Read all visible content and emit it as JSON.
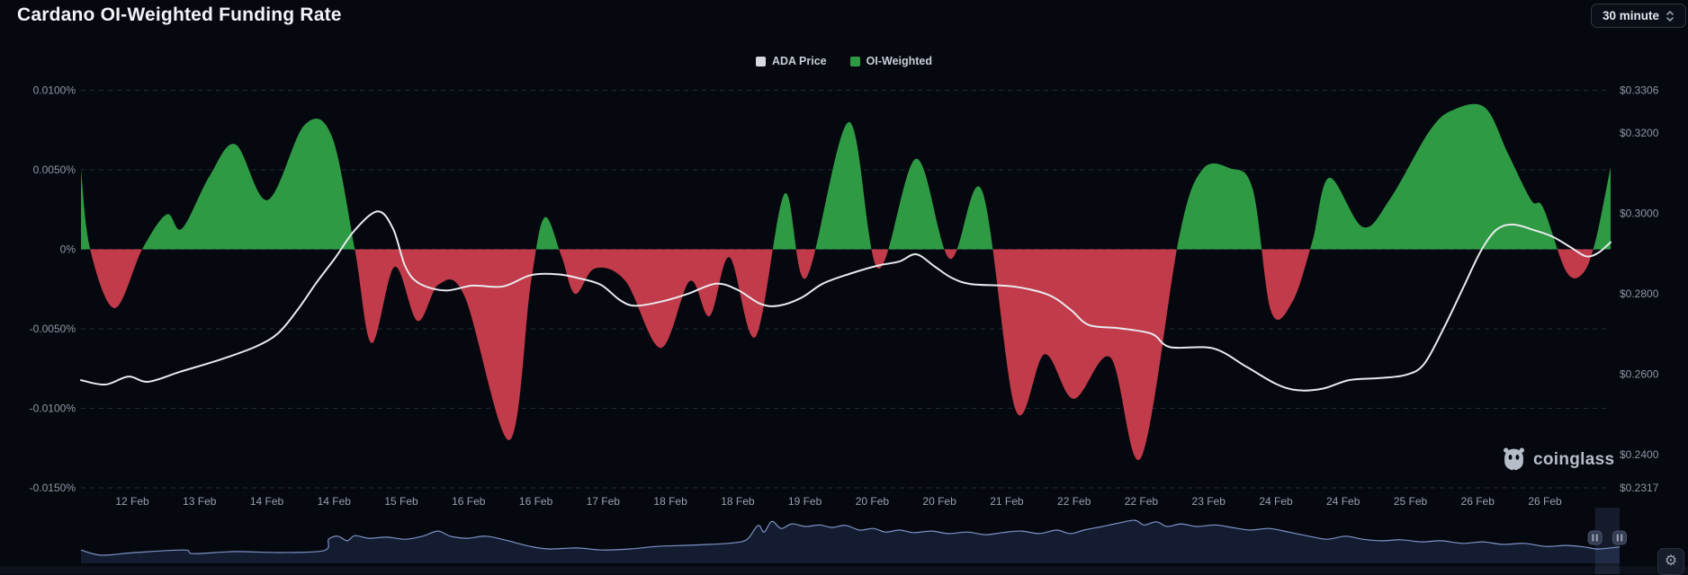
{
  "title": "Cardano OI-Weighted Funding Rate",
  "interval_selector": {
    "value": "30 minute"
  },
  "legend": [
    {
      "label": "ADA Price",
      "color": "#d7dae0"
    },
    {
      "label": "OI-Weighted",
      "color": "#2e9b44"
    }
  ],
  "watermark": "coinglass",
  "colors": {
    "background": "#05080f",
    "positive": "#2e9b44",
    "negative": "#c13b4a",
    "price_line": "#e9eaee",
    "grid": "#232a36",
    "axis_text": "#8e96a4",
    "navigator_line": "#7d92c4",
    "navigator_fill": "#131c30"
  },
  "chart_data": {
    "type": "area+line",
    "title": "Cardano OI-Weighted Funding Rate",
    "legend_position": "top-center",
    "grid": {
      "style": "dashed",
      "on": true
    },
    "x_axis": {
      "ticks": [
        "12 Feb",
        "13 Feb",
        "14 Feb",
        "14 Feb",
        "15 Feb",
        "16 Feb",
        "16 Feb",
        "17 Feb",
        "18 Feb",
        "18 Feb",
        "19 Feb",
        "20 Feb",
        "20 Feb",
        "21 Feb",
        "22 Feb",
        "22 Feb",
        "23 Feb",
        "24 Feb",
        "24 Feb",
        "25 Feb",
        "26 Feb",
        "26 Feb"
      ]
    },
    "left_axis": {
      "unit": "%",
      "labels": [
        "0.0100%",
        "0.0050%",
        "0%",
        "-0.0050%",
        "-0.0100%",
        "-0.0150%"
      ],
      "values": [
        0.01,
        0.005,
        0,
        -0.005,
        -0.01,
        -0.015
      ]
    },
    "right_axis": {
      "unit": "$",
      "labels": [
        "$0.3306",
        "$0.3200",
        "$0.3000",
        "$0.2800",
        "$0.2600",
        "$0.2400",
        "$0.2317"
      ],
      "values": [
        0.3306,
        0.32,
        0.3,
        0.28,
        0.26,
        0.24,
        0.2317
      ]
    },
    "series": [
      {
        "name": "ADA Price",
        "type": "line",
        "unit": "USD",
        "points": [
          [
            0.0,
            0.2585
          ],
          [
            0.016,
            0.2574
          ],
          [
            0.031,
            0.2594
          ],
          [
            0.044,
            0.2581
          ],
          [
            0.065,
            0.2606
          ],
          [
            0.091,
            0.2636
          ],
          [
            0.114,
            0.2668
          ],
          [
            0.129,
            0.2702
          ],
          [
            0.142,
            0.2762
          ],
          [
            0.154,
            0.2828
          ],
          [
            0.166,
            0.2888
          ],
          [
            0.179,
            0.2958
          ],
          [
            0.194,
            0.3005
          ],
          [
            0.204,
            0.2962
          ],
          [
            0.212,
            0.2868
          ],
          [
            0.221,
            0.2826
          ],
          [
            0.238,
            0.2808
          ],
          [
            0.256,
            0.282
          ],
          [
            0.276,
            0.2818
          ],
          [
            0.294,
            0.2846
          ],
          [
            0.312,
            0.2848
          ],
          [
            0.326,
            0.2838
          ],
          [
            0.34,
            0.2822
          ],
          [
            0.352,
            0.2785
          ],
          [
            0.362,
            0.277
          ],
          [
            0.379,
            0.278
          ],
          [
            0.397,
            0.28
          ],
          [
            0.415,
            0.2825
          ],
          [
            0.429,
            0.281
          ],
          [
            0.444,
            0.2775
          ],
          [
            0.456,
            0.277
          ],
          [
            0.471,
            0.279
          ],
          [
            0.485,
            0.2825
          ],
          [
            0.503,
            0.285
          ],
          [
            0.521,
            0.287
          ],
          [
            0.535,
            0.288
          ],
          [
            0.546,
            0.2898
          ],
          [
            0.558,
            0.2868
          ],
          [
            0.569,
            0.284
          ],
          [
            0.582,
            0.2824
          ],
          [
            0.609,
            0.2818
          ],
          [
            0.632,
            0.2798
          ],
          [
            0.647,
            0.276
          ],
          [
            0.659,
            0.2722
          ],
          [
            0.679,
            0.2714
          ],
          [
            0.7,
            0.27
          ],
          [
            0.712,
            0.2667
          ],
          [
            0.74,
            0.2664
          ],
          [
            0.762,
            0.2618
          ],
          [
            0.781,
            0.2576
          ],
          [
            0.795,
            0.256
          ],
          [
            0.812,
            0.2564
          ],
          [
            0.829,
            0.2585
          ],
          [
            0.848,
            0.259
          ],
          [
            0.866,
            0.2598
          ],
          [
            0.878,
            0.2625
          ],
          [
            0.891,
            0.2715
          ],
          [
            0.903,
            0.281
          ],
          [
            0.915,
            0.2905
          ],
          [
            0.925,
            0.2958
          ],
          [
            0.936,
            0.2972
          ],
          [
            0.95,
            0.2958
          ],
          [
            0.962,
            0.2942
          ],
          [
            0.974,
            0.2915
          ],
          [
            0.984,
            0.2893
          ],
          [
            0.992,
            0.2902
          ],
          [
            1.0,
            0.2928
          ]
        ]
      },
      {
        "name": "OI-Weighted",
        "type": "area",
        "unit": "percent",
        "points": [
          [
            0.0,
            0.005
          ],
          [
            0.006,
            0.0
          ],
          [
            0.022,
            -0.0037
          ],
          [
            0.04,
            0.0
          ],
          [
            0.056,
            0.0022
          ],
          [
            0.066,
            0.0013
          ],
          [
            0.084,
            0.0046
          ],
          [
            0.101,
            0.0066
          ],
          [
            0.122,
            0.0031
          ],
          [
            0.146,
            0.0078
          ],
          [
            0.164,
            0.0071
          ],
          [
            0.179,
            0.0
          ],
          [
            0.19,
            -0.0059
          ],
          [
            0.205,
            -0.0011
          ],
          [
            0.22,
            -0.0045
          ],
          [
            0.234,
            -0.0022
          ],
          [
            0.251,
            -0.003
          ],
          [
            0.28,
            -0.012
          ],
          [
            0.294,
            -0.0022
          ],
          [
            0.303,
            0.002
          ],
          [
            0.314,
            -0.0004
          ],
          [
            0.323,
            -0.0028
          ],
          [
            0.336,
            -0.0012
          ],
          [
            0.356,
            -0.002
          ],
          [
            0.379,
            -0.0062
          ],
          [
            0.398,
            -0.002
          ],
          [
            0.411,
            -0.0042
          ],
          [
            0.424,
            -0.0005
          ],
          [
            0.441,
            -0.0055
          ],
          [
            0.46,
            0.0035
          ],
          [
            0.474,
            -0.0018
          ],
          [
            0.502,
            0.008
          ],
          [
            0.521,
            -0.0012
          ],
          [
            0.546,
            0.0057
          ],
          [
            0.568,
            -0.0006
          ],
          [
            0.589,
            0.0037
          ],
          [
            0.611,
            -0.0101
          ],
          [
            0.63,
            -0.0066
          ],
          [
            0.649,
            -0.0094
          ],
          [
            0.673,
            -0.0068
          ],
          [
            0.693,
            -0.0131
          ],
          [
            0.718,
            0.0008
          ],
          [
            0.733,
            0.005
          ],
          [
            0.751,
            0.0051
          ],
          [
            0.766,
            0.0038
          ],
          [
            0.778,
            -0.0039
          ],
          [
            0.792,
            -0.0033
          ],
          [
            0.805,
            0.0005
          ],
          [
            0.816,
            0.0045
          ],
          [
            0.838,
            0.0014
          ],
          [
            0.856,
            0.0032
          ],
          [
            0.882,
            0.0075
          ],
          [
            0.898,
            0.0088
          ],
          [
            0.918,
            0.0089
          ],
          [
            0.933,
            0.006
          ],
          [
            0.948,
            0.0031
          ],
          [
            0.956,
            0.0026
          ],
          [
            0.971,
            -0.0014
          ],
          [
            0.982,
            -0.0015
          ],
          [
            0.99,
            0.0005
          ],
          [
            0.998,
            0.0042
          ],
          [
            1.0,
            0.0052
          ]
        ]
      }
    ],
    "navigator": {
      "selection": [
        0.984,
        1.0
      ],
      "points": [
        [
          0.0,
          0.26
        ],
        [
          0.013,
          0.16
        ],
        [
          0.035,
          0.21
        ],
        [
          0.067,
          0.26
        ],
        [
          0.073,
          0.19
        ],
        [
          0.1,
          0.23
        ],
        [
          0.129,
          0.21
        ],
        [
          0.158,
          0.25
        ],
        [
          0.161,
          0.47
        ],
        [
          0.167,
          0.53
        ],
        [
          0.173,
          0.44
        ],
        [
          0.178,
          0.54
        ],
        [
          0.187,
          0.49
        ],
        [
          0.199,
          0.51
        ],
        [
          0.211,
          0.47
        ],
        [
          0.222,
          0.53
        ],
        [
          0.232,
          0.63
        ],
        [
          0.24,
          0.53
        ],
        [
          0.251,
          0.49
        ],
        [
          0.263,
          0.53
        ],
        [
          0.275,
          0.46
        ],
        [
          0.284,
          0.39
        ],
        [
          0.292,
          0.33
        ],
        [
          0.304,
          0.28
        ],
        [
          0.322,
          0.3
        ],
        [
          0.339,
          0.26
        ],
        [
          0.357,
          0.28
        ],
        [
          0.374,
          0.33
        ],
        [
          0.392,
          0.35
        ],
        [
          0.409,
          0.37
        ],
        [
          0.424,
          0.4
        ],
        [
          0.433,
          0.47
        ],
        [
          0.44,
          0.74
        ],
        [
          0.444,
          0.61
        ],
        [
          0.449,
          0.82
        ],
        [
          0.455,
          0.68
        ],
        [
          0.462,
          0.77
        ],
        [
          0.471,
          0.72
        ],
        [
          0.48,
          0.75
        ],
        [
          0.488,
          0.7
        ],
        [
          0.497,
          0.74
        ],
        [
          0.506,
          0.65
        ],
        [
          0.515,
          0.68
        ],
        [
          0.523,
          0.61
        ],
        [
          0.532,
          0.65
        ],
        [
          0.541,
          0.6
        ],
        [
          0.553,
          0.63
        ],
        [
          0.564,
          0.58
        ],
        [
          0.576,
          0.61
        ],
        [
          0.588,
          0.56
        ],
        [
          0.599,
          0.6
        ],
        [
          0.611,
          0.63
        ],
        [
          0.623,
          0.58
        ],
        [
          0.634,
          0.65
        ],
        [
          0.643,
          0.58
        ],
        [
          0.652,
          0.65
        ],
        [
          0.664,
          0.72
        ],
        [
          0.675,
          0.79
        ],
        [
          0.685,
          0.84
        ],
        [
          0.691,
          0.75
        ],
        [
          0.699,
          0.81
        ],
        [
          0.706,
          0.72
        ],
        [
          0.715,
          0.77
        ],
        [
          0.725,
          0.72
        ],
        [
          0.737,
          0.75
        ],
        [
          0.748,
          0.7
        ],
        [
          0.76,
          0.65
        ],
        [
          0.772,
          0.68
        ],
        [
          0.785,
          0.61
        ],
        [
          0.798,
          0.53
        ],
        [
          0.81,
          0.47
        ],
        [
          0.822,
          0.53
        ],
        [
          0.833,
          0.47
        ],
        [
          0.845,
          0.44
        ],
        [
          0.858,
          0.46
        ],
        [
          0.871,
          0.42
        ],
        [
          0.884,
          0.44
        ],
        [
          0.898,
          0.39
        ],
        [
          0.911,
          0.42
        ],
        [
          0.924,
          0.37
        ],
        [
          0.938,
          0.39
        ],
        [
          0.952,
          0.33
        ],
        [
          0.965,
          0.35
        ],
        [
          0.977,
          0.32
        ],
        [
          0.986,
          0.28
        ],
        [
          1.0,
          0.32
        ]
      ]
    }
  }
}
